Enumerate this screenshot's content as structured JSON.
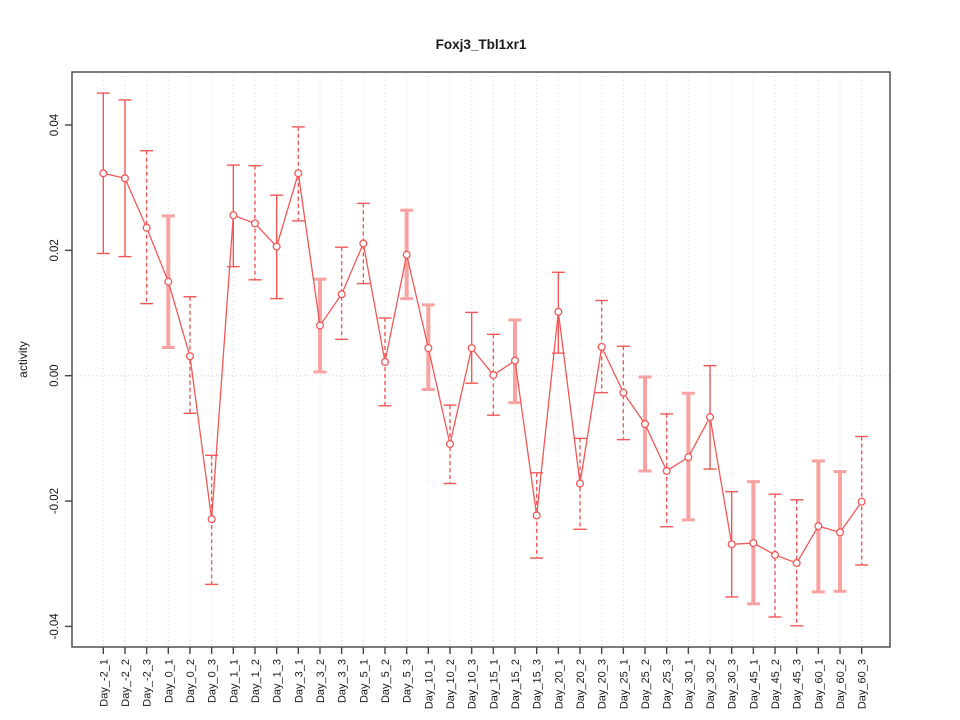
{
  "chart_data": {
    "type": "line",
    "title": "Foxj3_Tbl1xr1",
    "xlabel": "",
    "ylabel": "activity",
    "ylim": [
      -0.0433,
      0.0485
    ],
    "yticks": [
      -0.04,
      -0.02,
      0.0,
      0.02,
      0.04
    ],
    "ytick_labels": [
      "-0.04",
      "-0.02",
      "0.00",
      "0.02",
      "0.04"
    ],
    "grid": "vertical dotted gridline at every category; dotted horizontal reference line at y=0",
    "legend_position": "none",
    "marker": "open-circle",
    "error_bars": true,
    "categories": [
      "Day_-2_1",
      "Day_-2_2",
      "Day_-2_3",
      "Day_0_1",
      "Day_0_2",
      "Day_0_3",
      "Day_1_1",
      "Day_1_2",
      "Day_1_3",
      "Day_3_1",
      "Day_3_2",
      "Day_3_3",
      "Day_5_1",
      "Day_5_2",
      "Day_5_3",
      "Day_10_1",
      "Day_10_2",
      "Day_10_3",
      "Day_15_1",
      "Day_15_2",
      "Day_15_3",
      "Day_20_1",
      "Day_20_2",
      "Day_20_3",
      "Day_25_1",
      "Day_25_2",
      "Day_25_3",
      "Day_30_1",
      "Day_30_2",
      "Day_30_3",
      "Day_45_1",
      "Day_45_2",
      "Day_45_3",
      "Day_60_1",
      "Day_60_2",
      "Day_60_3"
    ],
    "series": [
      {
        "name": "activity",
        "values": [
          0.0323,
          0.0315,
          0.0236,
          0.015,
          0.0031,
          -0.0229,
          0.0256,
          0.0243,
          0.0206,
          0.0323,
          0.008,
          0.013,
          0.0211,
          0.0022,
          0.0193,
          0.0044,
          -0.0109,
          0.0044,
          0.0001,
          0.0024,
          -0.0223,
          0.0102,
          -0.0172,
          0.0046,
          -0.0027,
          -0.0077,
          -0.0152,
          -0.013,
          -0.0066,
          -0.0269,
          -0.0267,
          -0.0286,
          -0.0299,
          -0.024,
          -0.025,
          -0.0201
        ],
        "lower": [
          0.0195,
          0.019,
          0.0115,
          0.0045,
          -0.006,
          -0.0333,
          0.0174,
          0.0153,
          0.0123,
          0.0247,
          0.0006,
          0.0058,
          0.0147,
          -0.0048,
          0.0123,
          -0.0022,
          -0.0172,
          -0.0012,
          -0.0063,
          -0.0043,
          -0.0291,
          0.0036,
          -0.0245,
          -0.0027,
          -0.0102,
          -0.0152,
          -0.0241,
          -0.023,
          -0.0149,
          -0.0353,
          -0.0364,
          -0.0385,
          -0.0399,
          -0.0345,
          -0.0344,
          -0.0302
        ],
        "upper": [
          0.0451,
          0.044,
          0.0359,
          0.0255,
          0.0126,
          -0.0127,
          0.0336,
          0.0335,
          0.0288,
          0.0397,
          0.0154,
          0.0205,
          0.0275,
          0.0092,
          0.0264,
          0.0113,
          -0.0047,
          0.0101,
          0.0066,
          0.0089,
          -0.0155,
          0.0165,
          -0.01,
          0.012,
          0.0047,
          -0.0002,
          -0.0061,
          -0.0028,
          0.0016,
          -0.0185,
          -0.0169,
          -0.0189,
          -0.0198,
          -0.0136,
          -0.0153,
          -0.0097
        ],
        "bar_styles": [
          "solid",
          "solid",
          "dashed",
          "thick",
          "dashed",
          "dashed",
          "solid",
          "dashed",
          "solid",
          "dashed",
          "thick",
          "dashed",
          "dashed",
          "dashed",
          "thick",
          "thick",
          "dashed",
          "solid",
          "dashed",
          "thick",
          "dashed",
          "solid",
          "dashed",
          "dashed",
          "dashed",
          "thick",
          "dashed",
          "thick",
          "solid",
          "solid",
          "thick",
          "dashed",
          "dashed",
          "thick",
          "thick",
          "dashed"
        ]
      }
    ],
    "colors": {
      "series_red": "#f25757",
      "thick_bar_pink": "#f8a2a2",
      "grid_gray": "#d8d8d8",
      "zero_line_gray": "#cfcfcf",
      "axis_dark": "#454545",
      "text_dark": "#1a1a1a"
    }
  }
}
